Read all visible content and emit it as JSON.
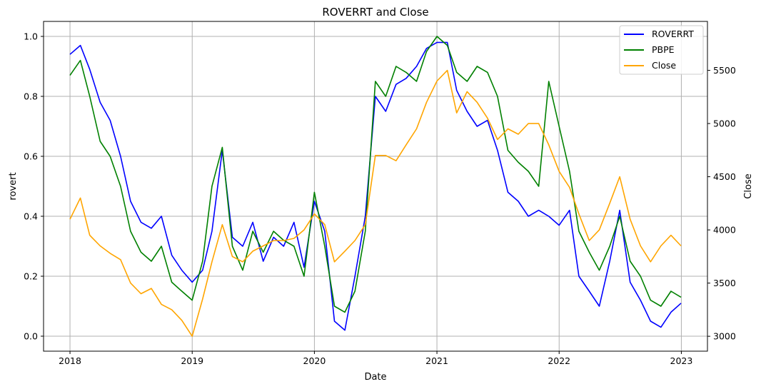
{
  "chart_data": {
    "type": "line",
    "title": "ROVERRT and Close",
    "xlabel": "Date",
    "ylabel": "rovert",
    "ylabel_right": "Close",
    "x_ticks": [
      "2018",
      "2019",
      "2020",
      "2021",
      "2022",
      "2023"
    ],
    "xlim": [
      "2017-10-14",
      "2023-03-20"
    ],
    "ylim": [
      -0.05,
      1.05
    ],
    "y_ticks": [
      "0.0",
      "0.2",
      "0.4",
      "0.6",
      "0.8",
      "1.0"
    ],
    "ylim_right": [
      2860,
      5960
    ],
    "y_ticks_right": [
      "3000",
      "3500",
      "4000",
      "4500",
      "5000",
      "5500"
    ],
    "grid": true,
    "legend_position": "top-right",
    "series": [
      {
        "name": "ROVERRT",
        "color": "#0000ff",
        "axis": "left",
        "x": [
          "2018-01-01",
          "2018-02-01",
          "2018-03-01",
          "2018-04-01",
          "2018-05-01",
          "2018-06-01",
          "2018-07-01",
          "2018-08-01",
          "2018-09-01",
          "2018-10-01",
          "2018-11-01",
          "2018-12-01",
          "2019-01-01",
          "2019-02-01",
          "2019-03-01",
          "2019-04-01",
          "2019-05-01",
          "2019-06-01",
          "2019-07-01",
          "2019-08-01",
          "2019-09-01",
          "2019-10-01",
          "2019-11-01",
          "2019-12-01",
          "2020-01-01",
          "2020-02-01",
          "2020-03-01",
          "2020-04-01",
          "2020-05-01",
          "2020-06-01",
          "2020-07-01",
          "2020-08-01",
          "2020-09-01",
          "2020-10-01",
          "2020-11-01",
          "2020-12-01",
          "2021-01-01",
          "2021-02-01",
          "2021-03-01",
          "2021-04-01",
          "2021-05-01",
          "2021-06-01",
          "2021-07-01",
          "2021-08-01",
          "2021-09-01",
          "2021-10-01",
          "2021-11-01",
          "2021-12-01",
          "2022-01-01",
          "2022-02-01",
          "2022-03-01",
          "2022-04-01",
          "2022-05-01",
          "2022-06-01",
          "2022-07-01",
          "2022-08-01",
          "2022-09-01",
          "2022-10-01",
          "2022-11-01",
          "2022-12-01",
          "2022-12-31"
        ],
        "values": [
          0.94,
          0.97,
          0.89,
          0.78,
          0.72,
          0.6,
          0.45,
          0.38,
          0.36,
          0.4,
          0.27,
          0.22,
          0.18,
          0.22,
          0.35,
          0.62,
          0.33,
          0.3,
          0.38,
          0.25,
          0.33,
          0.3,
          0.38,
          0.23,
          0.45,
          0.35,
          0.05,
          0.02,
          0.2,
          0.4,
          0.8,
          0.75,
          0.84,
          0.86,
          0.9,
          0.96,
          0.98,
          0.98,
          0.82,
          0.75,
          0.7,
          0.72,
          0.62,
          0.48,
          0.45,
          0.4,
          0.42,
          0.4,
          0.37,
          0.42,
          0.2,
          0.15,
          0.1,
          0.25,
          0.42,
          0.18,
          0.12,
          0.05,
          0.03,
          0.08,
          0.11
        ]
      },
      {
        "name": "PBPE",
        "color": "#008000",
        "axis": "left",
        "x": [
          "2018-01-01",
          "2018-02-01",
          "2018-03-01",
          "2018-04-01",
          "2018-05-01",
          "2018-06-01",
          "2018-07-01",
          "2018-08-01",
          "2018-09-01",
          "2018-10-01",
          "2018-11-01",
          "2018-12-01",
          "2019-01-01",
          "2019-02-01",
          "2019-03-01",
          "2019-04-01",
          "2019-05-01",
          "2019-06-01",
          "2019-07-01",
          "2019-08-01",
          "2019-09-01",
          "2019-10-01",
          "2019-11-01",
          "2019-12-01",
          "2020-01-01",
          "2020-02-01",
          "2020-03-01",
          "2020-04-01",
          "2020-05-01",
          "2020-06-01",
          "2020-07-01",
          "2020-08-01",
          "2020-09-01",
          "2020-10-01",
          "2020-11-01",
          "2020-12-01",
          "2021-01-01",
          "2021-02-01",
          "2021-03-01",
          "2021-04-01",
          "2021-05-01",
          "2021-06-01",
          "2021-07-01",
          "2021-08-01",
          "2021-09-01",
          "2021-10-01",
          "2021-11-01",
          "2021-12-01",
          "2022-01-01",
          "2022-02-01",
          "2022-03-01",
          "2022-04-01",
          "2022-05-01",
          "2022-06-01",
          "2022-07-01",
          "2022-08-01",
          "2022-09-01",
          "2022-10-01",
          "2022-11-01",
          "2022-12-01",
          "2022-12-31"
        ],
        "values": [
          0.87,
          0.92,
          0.8,
          0.65,
          0.6,
          0.5,
          0.35,
          0.28,
          0.25,
          0.3,
          0.18,
          0.15,
          0.12,
          0.25,
          0.5,
          0.63,
          0.3,
          0.22,
          0.35,
          0.28,
          0.35,
          0.32,
          0.3,
          0.2,
          0.48,
          0.3,
          0.1,
          0.08,
          0.15,
          0.35,
          0.85,
          0.8,
          0.9,
          0.88,
          0.85,
          0.95,
          1.0,
          0.97,
          0.88,
          0.85,
          0.9,
          0.88,
          0.8,
          0.62,
          0.58,
          0.55,
          0.5,
          0.85,
          0.7,
          0.55,
          0.35,
          0.28,
          0.22,
          0.3,
          0.4,
          0.25,
          0.2,
          0.12,
          0.1,
          0.15,
          0.13
        ]
      },
      {
        "name": "Close",
        "color": "#ffa500",
        "axis": "right",
        "x": [
          "2018-01-01",
          "2018-02-01",
          "2018-03-01",
          "2018-04-01",
          "2018-05-01",
          "2018-06-01",
          "2018-07-01",
          "2018-08-01",
          "2018-09-01",
          "2018-10-01",
          "2018-11-01",
          "2018-12-01",
          "2019-01-01",
          "2019-02-01",
          "2019-03-01",
          "2019-04-01",
          "2019-05-01",
          "2019-06-01",
          "2019-07-01",
          "2019-08-01",
          "2019-09-01",
          "2019-10-01",
          "2019-11-01",
          "2019-12-01",
          "2020-01-01",
          "2020-02-01",
          "2020-03-01",
          "2020-04-01",
          "2020-05-01",
          "2020-06-01",
          "2020-07-01",
          "2020-08-01",
          "2020-09-01",
          "2020-10-01",
          "2020-11-01",
          "2020-12-01",
          "2021-01-01",
          "2021-02-01",
          "2021-03-01",
          "2021-04-01",
          "2021-05-01",
          "2021-06-01",
          "2021-07-01",
          "2021-08-01",
          "2021-09-01",
          "2021-10-01",
          "2021-11-01",
          "2021-12-01",
          "2022-01-01",
          "2022-02-01",
          "2022-03-01",
          "2022-04-01",
          "2022-05-01",
          "2022-06-01",
          "2022-07-01",
          "2022-08-01",
          "2022-09-01",
          "2022-10-01",
          "2022-11-01",
          "2022-12-01",
          "2022-12-31"
        ],
        "values": [
          4100,
          4300,
          3950,
          3850,
          3780,
          3720,
          3500,
          3400,
          3450,
          3300,
          3250,
          3150,
          3000,
          3350,
          3700,
          4050,
          3750,
          3700,
          3800,
          3850,
          3900,
          3900,
          3920,
          4000,
          4150,
          4050,
          3700,
          3800,
          3900,
          4050,
          4700,
          4700,
          4650,
          4800,
          4950,
          5200,
          5400,
          5500,
          5100,
          5300,
          5200,
          5050,
          4850,
          4950,
          4900,
          5000,
          5000,
          4800,
          4550,
          4400,
          4150,
          3900,
          4000,
          4250,
          4500,
          4100,
          3850,
          3700,
          3850,
          3950,
          3850
        ]
      }
    ]
  }
}
